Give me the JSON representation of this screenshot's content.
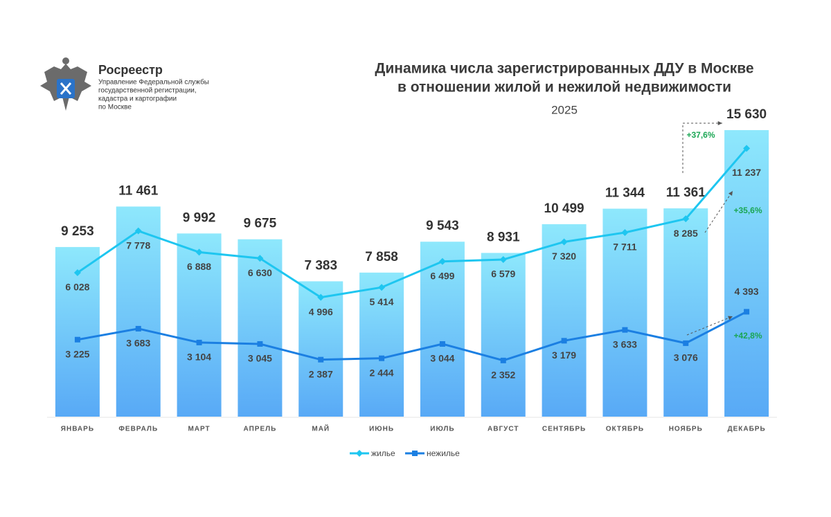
{
  "logo": {
    "name": "Росреестр",
    "subtitle": [
      "Управление Федеральной службы",
      "государственной регистрации,",
      "кадастра и картографии",
      "по Москве"
    ]
  },
  "chart_data": {
    "type": "combo",
    "title": [
      "Динамика числа зарегистрированных ДДУ в Москве",
      "в отношении жилой и нежилой недвижимости"
    ],
    "subtitle": "2025",
    "categories": [
      "ЯНВАРЬ",
      "ФЕВРАЛЬ",
      "МАРТ",
      "АПРЕЛЬ",
      "МАЙ",
      "ИЮНЬ",
      "ИЮЛЬ",
      "АВГУСТ",
      "СЕНТЯБРЬ",
      "ОКТЯБРЬ",
      "НОЯБРЬ",
      "ДЕКАБРЬ"
    ],
    "bars": {
      "values": [
        9253,
        11461,
        9992,
        9675,
        7383,
        7858,
        9543,
        8931,
        10499,
        11344,
        11361,
        15630
      ],
      "value_labels": [
        "9 253",
        "11 461",
        "9 992",
        "9 675",
        "7 383",
        "7 858",
        "9 543",
        "8 931",
        "10 499",
        "11 344",
        "11 361",
        "15 630"
      ],
      "color": [
        "#8ee8fc",
        "#58a9f6"
      ]
    },
    "series": [
      {
        "name": "жилье",
        "color": "#1ec6f0",
        "marker": "diamond",
        "axis": "y2",
        "values": [
          6028,
          7778,
          6888,
          6630,
          4996,
          5414,
          6499,
          6579,
          7320,
          7711,
          8285,
          11237
        ],
        "value_labels": [
          "6 028",
          "7 778",
          "6 888",
          "6 630",
          "4 996",
          "5 414",
          "6 499",
          "6 579",
          "7 320",
          "7 711",
          "8 285",
          "11 237"
        ]
      },
      {
        "name": "нежилье",
        "color": "#1b7fe2",
        "marker": "square",
        "axis": "y2",
        "values": [
          3225,
          3683,
          3104,
          3045,
          2387,
          2444,
          3044,
          2352,
          3179,
          3633,
          3076,
          4393
        ],
        "value_labels": [
          "3 225",
          "3 683",
          "3 104",
          "3 045",
          "2 387",
          "2 444",
          "3 044",
          "2 352",
          "3 179",
          "3 633",
          "3 076",
          "4 393"
        ]
      }
    ],
    "ylim": [
      0,
      15630
    ],
    "y2lim": [
      0,
      12000
    ],
    "annotations": [
      {
        "text": "+37,6%",
        "color": "#1aa653"
      },
      {
        "text": "+35,6%",
        "color": "#1aa653"
      },
      {
        "text": "+42,8%",
        "color": "#1aa653"
      }
    ]
  }
}
